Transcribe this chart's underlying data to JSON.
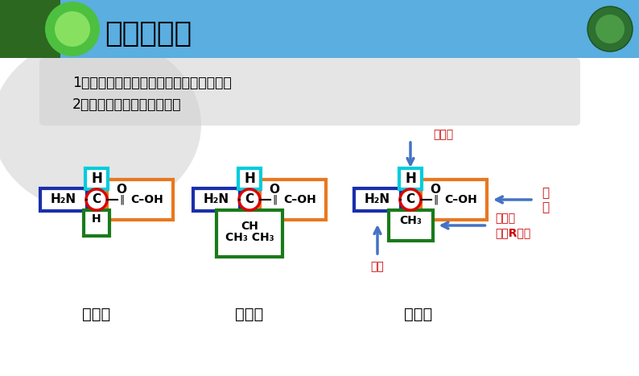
{
  "bg_top_color": "#5aaee0",
  "bg_main_color": "#ffffff",
  "bg_gray_color": "#e0e0e0",
  "header_text": "思考讨论：",
  "question1": "1、这些氨基酸的结构具有什么共同特点？",
  "question2": "2、能否写出氨基酸的通式？",
  "label_blue": "#1a2faa",
  "label_cyan": "#00ccdd",
  "label_orange": "#e87820",
  "label_green": "#1a7a1a",
  "label_red_circle": "#dd0000",
  "label_red_text": "#cc0000",
  "label_arrow": "#4472c4",
  "amino1_name": "甘氨酸",
  "amino2_name": "缬氨酸",
  "amino3_name": "丙氨酸",
  "ann_hydrogen": "氢原子",
  "ann_carboxyl1": "羧",
  "ann_carboxyl2": "基",
  "ann_amino": "氨基",
  "ann_rgroup1": "侧链基",
  "ann_rgroup2": "团（R基）"
}
